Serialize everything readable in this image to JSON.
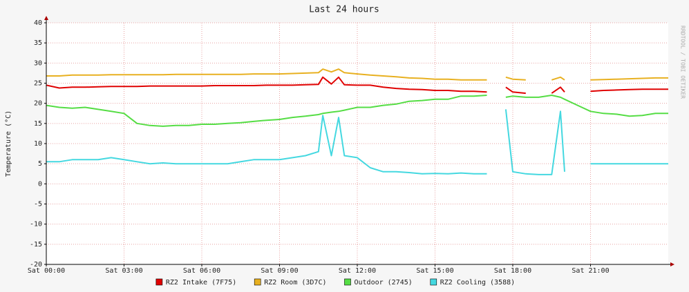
{
  "chart_data": {
    "type": "line",
    "title": "Last 24 hours",
    "y_label": "Temperature (°C)",
    "watermark": "RRDTOOL / TOBI OETIKER",
    "x": [
      0,
      0.5,
      1,
      1.5,
      2,
      2.5,
      3,
      3.5,
      4,
      4.5,
      5,
      5.5,
      6,
      6.5,
      7,
      7.5,
      8,
      8.5,
      9,
      9.5,
      10,
      10.5,
      10.67,
      11,
      11.28,
      11.5,
      12,
      12.5,
      13,
      13.5,
      14,
      14.5,
      15,
      15.5,
      16,
      16.5,
      17,
      17.5,
      17.73,
      18,
      18.5,
      19,
      19.5,
      19.84,
      20,
      20.5,
      21,
      21.5,
      22,
      22.5,
      23,
      23.5,
      24
    ],
    "series": [
      {
        "name": "RZ2 Intake (7F75)",
        "color": "#e00000",
        "values": [
          24.5,
          23.8,
          24,
          24,
          24.1,
          24.2,
          24.2,
          24.2,
          24.3,
          24.3,
          24.3,
          24.3,
          24.3,
          24.4,
          24.4,
          24.4,
          24.4,
          24.5,
          24.5,
          24.5,
          24.6,
          24.7,
          26.5,
          24.8,
          26.5,
          24.6,
          24.5,
          24.5,
          24,
          23.7,
          23.5,
          23.4,
          23.2,
          23.2,
          23,
          23,
          22.8,
          null,
          24,
          22.8,
          22.5,
          null,
          22.5,
          24,
          22.8,
          null,
          23,
          23.2,
          23.3,
          23.4,
          23.5,
          23.5,
          23.5
        ]
      },
      {
        "name": "RZ2 Room (3D7C)",
        "color": "#e8b020",
        "values": [
          26.8,
          26.8,
          27,
          27,
          27,
          27.1,
          27.1,
          27.1,
          27.1,
          27.1,
          27.2,
          27.2,
          27.2,
          27.2,
          27.2,
          27.2,
          27.3,
          27.3,
          27.3,
          27.4,
          27.5,
          27.6,
          28.5,
          27.8,
          28.5,
          27.6,
          27.3,
          27,
          26.8,
          26.6,
          26.3,
          26.2,
          26,
          26,
          25.8,
          25.8,
          25.8,
          null,
          26.5,
          26,
          25.8,
          null,
          25.8,
          26.5,
          25.8,
          null,
          25.8,
          25.9,
          26,
          26.1,
          26.2,
          26.3,
          26.3
        ]
      },
      {
        "name": "Outdoor (2745)",
        "color": "#55dd44",
        "values": [
          19.5,
          19,
          18.8,
          19,
          18.5,
          18,
          17.5,
          15,
          14.5,
          14.3,
          14.5,
          14.5,
          14.8,
          14.8,
          15,
          15.2,
          15.5,
          15.8,
          16,
          16.5,
          16.8,
          17.2,
          17.5,
          17.8,
          18,
          18.3,
          19,
          19,
          19.5,
          19.8,
          20.5,
          20.7,
          21,
          21,
          21.8,
          21.8,
          22,
          null,
          21.5,
          21.8,
          21.5,
          21.5,
          22,
          21.5,
          21,
          19.5,
          18,
          17.5,
          17.3,
          16.8,
          17,
          17.5,
          17.5
        ]
      },
      {
        "name": "RZ2 Cooling (3588)",
        "color": "#44d8e0",
        "values": [
          5.5,
          5.5,
          6,
          6,
          6,
          6.5,
          6,
          5.5,
          5,
          5.2,
          5,
          5,
          5,
          5,
          5,
          5.5,
          6,
          6,
          6,
          6.5,
          7,
          8,
          17,
          7,
          16.5,
          7,
          6.5,
          4,
          3,
          3,
          2.8,
          2.5,
          2.6,
          2.5,
          2.7,
          2.5,
          2.5,
          null,
          18.5,
          3,
          2.5,
          2.3,
          2.3,
          18,
          3,
          null,
          5,
          5,
          5,
          5,
          5,
          5,
          5
        ]
      }
    ],
    "xlim": [
      0,
      24
    ],
    "ylim": [
      -20,
      40
    ],
    "xticks": [
      {
        "value": 0,
        "label": "Sat 00:00"
      },
      {
        "value": 3,
        "label": "Sat 03:00"
      },
      {
        "value": 6,
        "label": "Sat 06:00"
      },
      {
        "value": 9,
        "label": "Sat 09:00"
      },
      {
        "value": 12,
        "label": "Sat 12:00"
      },
      {
        "value": 15,
        "label": "Sat 15:00"
      },
      {
        "value": 18,
        "label": "Sat 18:00"
      },
      {
        "value": 21,
        "label": "Sat 21:00"
      }
    ],
    "yticks": [
      -20,
      -15,
      -10,
      -5,
      0,
      5,
      10,
      15,
      20,
      25,
      30,
      35,
      40
    ],
    "grid": true
  }
}
